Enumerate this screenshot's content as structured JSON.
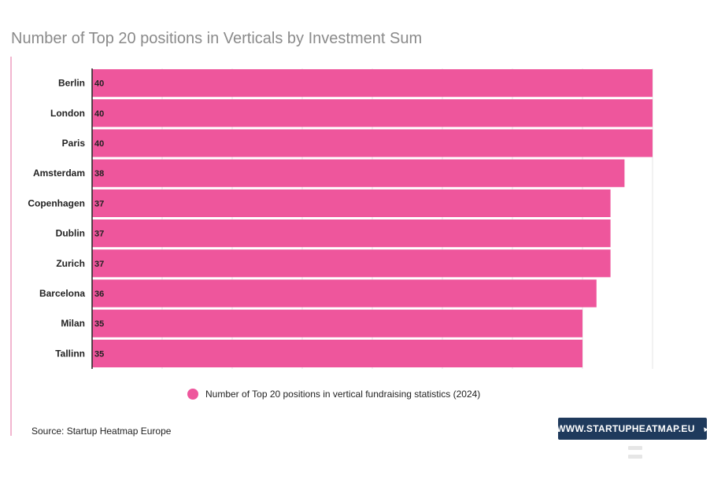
{
  "chart_data": {
    "type": "bar",
    "orientation": "horizontal",
    "title": "Number of Top 20 positions in Verticals by Investment Sum",
    "categories": [
      "Berlin",
      "London",
      "Paris",
      "Amsterdam",
      "Copenhagen",
      "Dublin",
      "Zurich",
      "Barcelona",
      "Milan",
      "Tallinn"
    ],
    "series": [
      {
        "name": "Number of Top 20 positions in vertical fundraising statistics (2024)",
        "color": "#ee569c",
        "values": [
          40,
          40,
          40,
          38,
          37,
          37,
          37,
          36,
          35,
          35
        ]
      }
    ],
    "xlim": [
      0,
      40
    ],
    "grid": true,
    "legend_position": "bottom",
    "data_labels": true
  },
  "footer": {
    "source": "Source: Startup Heatmap Europe",
    "brand": "WWW.STARTUPHEATMAP.EU",
    "brand_color": "#1f3a5c"
  }
}
